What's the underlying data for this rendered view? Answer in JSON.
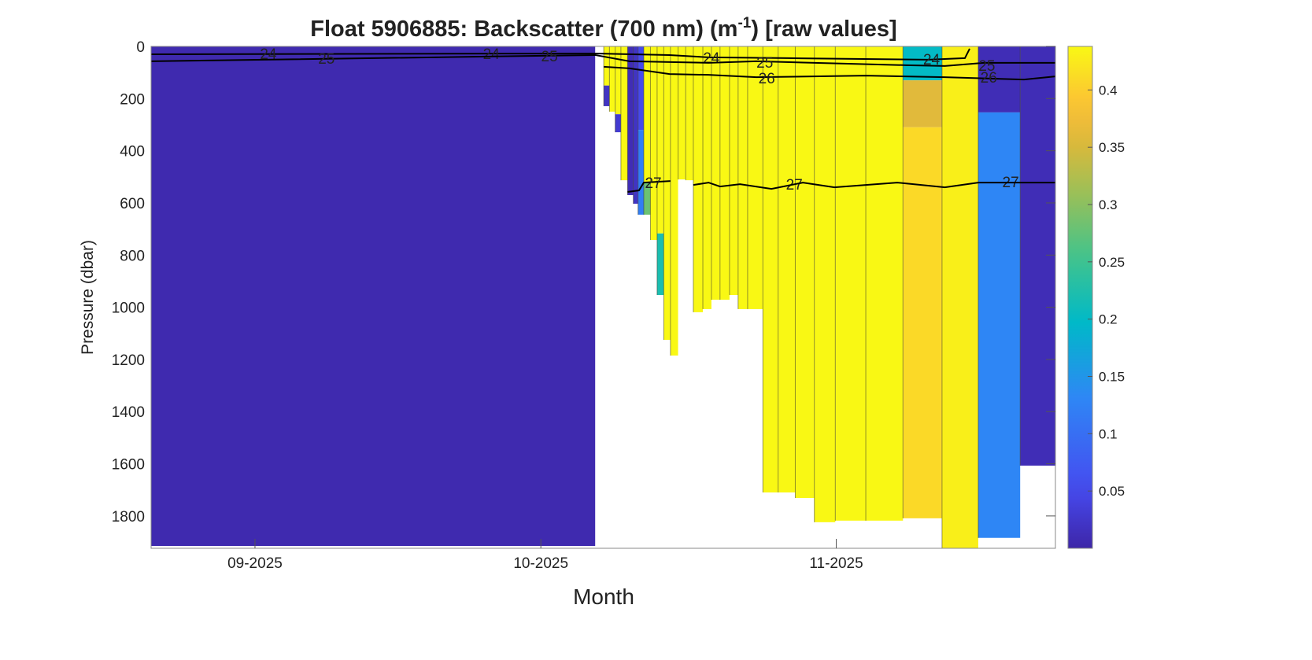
{
  "chart_data": {
    "type": "heatmap",
    "title": "Float  5906885:  Backscatter  (700  nm)  (m",
    "title_sup": "-1",
    "title_tail": ")  [raw  values]",
    "xlabel": "Month",
    "ylabel": "Pressure (dbar)",
    "x_units": "days since 2025-09-01",
    "xlim": [
      -10.9,
      84.0
    ],
    "ylim": [
      0,
      1924
    ],
    "y_reversed": true,
    "xticks": [
      {
        "value": 0,
        "label": "09-2025"
      },
      {
        "value": 30,
        "label": "10-2025"
      },
      {
        "value": 61,
        "label": "11-2025"
      }
    ],
    "yticks": [
      0,
      200,
      400,
      600,
      800,
      1000,
      1200,
      1400,
      1600,
      1800
    ],
    "colorbar": {
      "clim": [
        0,
        0.438
      ],
      "ticks": [
        0.05,
        0.1,
        0.15,
        0.2,
        0.25,
        0.3,
        0.35,
        0.4
      ],
      "tick_labels": [
        "0.05",
        "0.1",
        "0.15",
        "0.2",
        "0.25",
        "0.3",
        "0.35",
        "0.4"
      ]
    },
    "profiles": [
      {
        "x0": -10.9,
        "x1": 35.7,
        "segments": [
          [
            0,
            1915,
            0.005
          ]
        ]
      },
      {
        "x0": 36.6,
        "x1": 37.2,
        "segments": [
          [
            0,
            150,
            0.44
          ],
          [
            150,
            229,
            0.02
          ]
        ]
      },
      {
        "x0": 37.2,
        "x1": 37.8,
        "segments": [
          [
            0,
            250,
            0.44
          ]
        ]
      },
      {
        "x0": 37.8,
        "x1": 38.4,
        "segments": [
          [
            0,
            260,
            0.44
          ],
          [
            260,
            329,
            0.03
          ]
        ]
      },
      {
        "x0": 38.4,
        "x1": 39.1,
        "segments": [
          [
            0,
            513,
            0.44
          ]
        ]
      },
      {
        "x0": 39.1,
        "x1": 39.7,
        "segments": [
          [
            0,
            570,
            0.01
          ]
        ]
      },
      {
        "x0": 39.7,
        "x1": 40.2,
        "segments": [
          [
            0,
            603,
            0.02
          ]
        ]
      },
      {
        "x0": 40.2,
        "x1": 40.8,
        "segments": [
          [
            0,
            320,
            0.05
          ],
          [
            320,
            645,
            0.12
          ]
        ]
      },
      {
        "x0": 40.8,
        "x1": 41.5,
        "segments": [
          [
            0,
            520,
            0.44
          ],
          [
            520,
            645,
            0.28
          ]
        ]
      },
      {
        "x0": 41.5,
        "x1": 42.2,
        "segments": [
          [
            0,
            742,
            0.44
          ]
        ]
      },
      {
        "x0": 42.2,
        "x1": 42.9,
        "segments": [
          [
            0,
            717,
            0.44
          ],
          [
            717,
            953,
            0.22
          ]
        ]
      },
      {
        "x0": 42.9,
        "x1": 43.6,
        "segments": [
          [
            0,
            1125,
            0.44
          ]
        ]
      },
      {
        "x0": 43.6,
        "x1": 44.4,
        "segments": [
          [
            0,
            1185,
            0.44
          ]
        ]
      },
      {
        "x0": 44.4,
        "x1": 45.2,
        "segments": [
          [
            0,
            510,
            0.44
          ]
        ]
      },
      {
        "x0": 45.2,
        "x1": 46.0,
        "segments": [
          [
            0,
            513,
            0.44
          ]
        ]
      },
      {
        "x0": 46.0,
        "x1": 47.0,
        "segments": [
          [
            0,
            1019,
            0.44
          ]
        ]
      },
      {
        "x0": 47.0,
        "x1": 47.9,
        "segments": [
          [
            0,
            1007,
            0.44
          ]
        ]
      },
      {
        "x0": 47.9,
        "x1": 48.8,
        "segments": [
          [
            0,
            971,
            0.44
          ]
        ]
      },
      {
        "x0": 48.8,
        "x1": 49.8,
        "segments": [
          [
            0,
            971,
            0.44
          ]
        ]
      },
      {
        "x0": 49.8,
        "x1": 50.7,
        "segments": [
          [
            0,
            953,
            0.44
          ]
        ]
      },
      {
        "x0": 50.7,
        "x1": 51.7,
        "segments": [
          [
            0,
            1007,
            0.44
          ]
        ]
      },
      {
        "x0": 51.7,
        "x1": 53.3,
        "segments": [
          [
            0,
            1007,
            0.44
          ]
        ]
      },
      {
        "x0": 53.3,
        "x1": 54.9,
        "segments": [
          [
            0,
            1710,
            0.44
          ]
        ]
      },
      {
        "x0": 54.9,
        "x1": 56.7,
        "segments": [
          [
            0,
            1710,
            0.44
          ]
        ]
      },
      {
        "x0": 56.7,
        "x1": 58.7,
        "segments": [
          [
            0,
            1731,
            0.44
          ]
        ]
      },
      {
        "x0": 58.7,
        "x1": 60.9,
        "segments": [
          [
            0,
            1824,
            0.44
          ]
        ]
      },
      {
        "x0": 60.9,
        "x1": 64.1,
        "segments": [
          [
            0,
            1818,
            0.44
          ]
        ]
      },
      {
        "x0": 64.1,
        "x1": 68.0,
        "segments": [
          [
            0,
            1818,
            0.44
          ]
        ]
      },
      {
        "x0": 68.0,
        "x1": 72.1,
        "segments": [
          [
            0,
            130,
            0.2
          ],
          [
            130,
            310,
            0.36
          ],
          [
            310,
            1809,
            0.41
          ]
        ]
      },
      {
        "x0": 72.1,
        "x1": 75.9,
        "segments": [
          [
            0,
            1924,
            0.43
          ]
        ]
      },
      {
        "x0": 75.9,
        "x1": 80.3,
        "segments": [
          [
            0,
            253,
            0.01
          ],
          [
            253,
            1884,
            0.13
          ]
        ]
      },
      {
        "x0": 80.3,
        "x1": 84.0,
        "segments": [
          [
            0,
            1607,
            0.01
          ]
        ]
      }
    ],
    "contours": [
      {
        "level": "24",
        "points": [
          [
            -10.9,
            30
          ],
          [
            35.7,
            27
          ],
          [
            43.5,
            33
          ],
          [
            47.6,
            42
          ],
          [
            55.9,
            45
          ],
          [
            70.7,
            51
          ],
          [
            74.5,
            45
          ],
          [
            75.0,
            9
          ]
        ],
        "labels": [
          [
            1.4,
            27
          ],
          [
            24.8,
            27
          ],
          [
            47.9,
            42
          ],
          [
            71.0,
            48
          ]
        ]
      },
      {
        "level": "25",
        "points": [
          [
            -10.9,
            57
          ],
          [
            35.7,
            33
          ],
          [
            39.3,
            57
          ],
          [
            47.6,
            63
          ],
          [
            52.6,
            57
          ],
          [
            68.3,
            72
          ],
          [
            72.4,
            75
          ],
          [
            76.5,
            63
          ],
          [
            84.0,
            63
          ]
        ],
        "labels": [
          [
            7.5,
            45
          ],
          [
            30.9,
            36
          ],
          [
            53.5,
            60
          ],
          [
            76.8,
            72
          ]
        ]
      },
      {
        "level": "26",
        "points": [
          [
            36.6,
            78
          ],
          [
            39.3,
            84
          ],
          [
            43.5,
            106
          ],
          [
            47.6,
            109
          ],
          [
            52.6,
            118
          ],
          [
            64.1,
            112
          ],
          [
            72.4,
            118
          ],
          [
            80.7,
            127
          ],
          [
            84.0,
            115
          ]
        ],
        "labels": [
          [
            53.7,
            121
          ],
          [
            77.0,
            118
          ]
        ]
      },
      {
        "level": "27",
        "points": [
          [
            39.1,
            558
          ],
          [
            40.3,
            552
          ],
          [
            40.8,
            522
          ],
          [
            43.6,
            516
          ]
        ],
        "labels": [
          [
            41.8,
            522
          ],
          [
            56.6,
            528
          ],
          [
            79.3,
            519
          ]
        ]
      },
      {
        "level": "27",
        "points": [
          [
            46.0,
            531
          ],
          [
            47.6,
            522
          ],
          [
            48.8,
            537
          ],
          [
            50.9,
            528
          ],
          [
            54.2,
            546
          ],
          [
            57.5,
            522
          ],
          [
            60.8,
            540
          ],
          [
            67.4,
            522
          ],
          [
            72.4,
            540
          ],
          [
            75.9,
            522
          ],
          [
            84.0,
            522
          ]
        ],
        "labels": []
      }
    ]
  }
}
